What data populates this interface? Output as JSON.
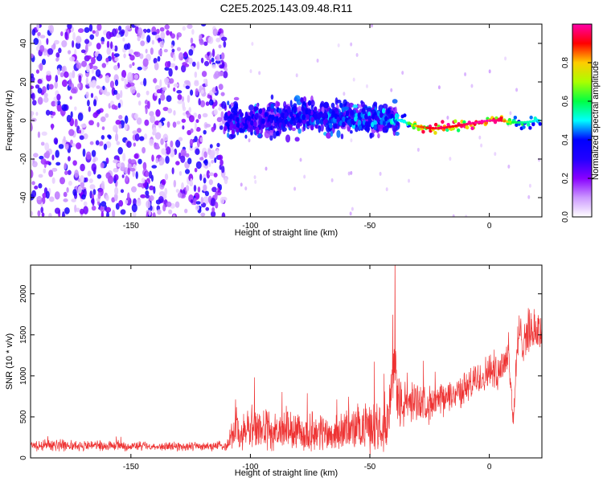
{
  "figure": {
    "title": "C2E5.2025.143.09.48.R11"
  },
  "chart_data": [
    {
      "type": "heatmap",
      "xlabel": "Height of straight line (km)",
      "ylabel": "Frequency (Hz)",
      "xlim": [
        -192,
        22
      ],
      "ylim": [
        -50,
        50
      ],
      "xticks": [
        -150,
        -100,
        -50,
        0
      ],
      "yticks": [
        -40,
        -20,
        0,
        20,
        40
      ],
      "colorbar": {
        "label": "Normalized spectral amplitude",
        "range": [
          0,
          1
        ],
        "ticks": [
          "0.0",
          "0.2",
          "0.4",
          "0.6",
          "0.8"
        ],
        "tick_values": [
          0,
          0.2,
          0.4,
          0.6,
          0.8
        ],
        "colors": [
          "#ffffff",
          "#cc99ff",
          "#8800ff",
          "#2200ff",
          "#0000ff",
          "#00ffff",
          "#00ff44",
          "#aaff00",
          "#ffcc00",
          "#ff0000",
          "#ff00aa"
        ]
      },
      "regions": [
        {
          "x_range": [
            -192,
            -110
          ],
          "y_range": [
            -50,
            50
          ],
          "amplitude": 0.12
        },
        {
          "x_range": [
            -110,
            -38
          ],
          "y_range": [
            -10,
            10
          ],
          "amplitude": 0.3
        },
        {
          "x_range": [
            -38,
            22
          ],
          "y_range": [
            -5,
            3
          ],
          "amplitude": 0.7
        }
      ],
      "ridge": {
        "x": [
          -110,
          -100,
          -90,
          -80,
          -70,
          -60,
          -50,
          -40,
          -35,
          -30,
          -25,
          -20,
          -15,
          -10,
          -5,
          0,
          5,
          10,
          15,
          20,
          22
        ],
        "y": [
          0,
          -1,
          1,
          3,
          1,
          2,
          1,
          1,
          -1,
          -3,
          -4,
          -4,
          -3,
          -2,
          -1,
          0,
          0,
          -1,
          -1,
          0,
          0
        ],
        "amplitude": [
          0.35,
          0.35,
          0.4,
          0.4,
          0.4,
          0.45,
          0.45,
          0.5,
          0.5,
          0.85,
          0.9,
          0.95,
          0.9,
          0.95,
          1.0,
          1.0,
          0.95,
          0.6,
          0.55,
          0.5,
          0.5
        ]
      }
    },
    {
      "type": "line",
      "xlabel": "Height of straight line (km)",
      "ylabel": "SNR (10 * v/v)",
      "xlim": [
        -192,
        22
      ],
      "ylim": [
        0,
        2350
      ],
      "xticks": [
        -150,
        -100,
        -50,
        0
      ],
      "yticks": [
        0,
        500,
        1000,
        1500,
        2000
      ],
      "series": [
        {
          "color": "#ee3333",
          "x": [
            -192,
            -180,
            -170,
            -160,
            -150,
            -140,
            -130,
            -120,
            -110,
            -106,
            -104,
            -100,
            -95,
            -90,
            -85,
            -80,
            -75,
            -70,
            -65,
            -60,
            -55,
            -50,
            -45,
            -42,
            -39,
            -38,
            -35,
            -32,
            -30,
            -25,
            -20,
            -15,
            -10,
            -5,
            0,
            5,
            8,
            10,
            12,
            15,
            18,
            22
          ],
          "y": [
            150,
            160,
            150,
            150,
            145,
            140,
            140,
            140,
            150,
            400,
            250,
            380,
            350,
            300,
            350,
            300,
            300,
            320,
            280,
            350,
            350,
            380,
            450,
            500,
            1200,
            650,
            650,
            700,
            700,
            650,
            700,
            780,
            850,
            950,
            1050,
            1100,
            1300,
            450,
            1450,
            1500,
            1550,
            1550
          ],
          "spread": [
            70,
            70,
            65,
            60,
            60,
            55,
            55,
            55,
            60,
            300,
            200,
            280,
            260,
            230,
            250,
            220,
            220,
            240,
            200,
            250,
            260,
            300,
            350,
            350,
            700,
            350,
            280,
            250,
            230,
            220,
            200,
            200,
            200,
            220,
            220,
            250,
            300,
            150,
            300,
            300,
            250,
            250
          ]
        }
      ]
    }
  ]
}
